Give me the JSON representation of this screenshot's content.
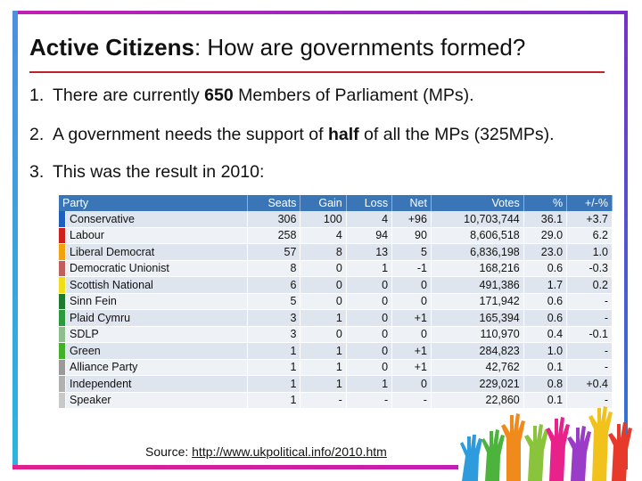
{
  "slide": {
    "title_bold": "Active Citizens",
    "title_rest": ": How are governments formed?",
    "points": [
      {
        "num": "1.",
        "before": "There are currently ",
        "bold": "650",
        "after": " Members of Parliament (MPs)."
      },
      {
        "num": "2.",
        "before": "A government needs the support of ",
        "bold": "half",
        "after": " of all the MPs (325MPs)."
      },
      {
        "num": "3.",
        "before": "This was the result in 2010:",
        "bold": "",
        "after": ""
      }
    ],
    "source_label": "Source: ",
    "source_link": "http://www.ukpolitical.info/2010.htm"
  },
  "table": {
    "headers": [
      "Party",
      "Seats",
      "Gain",
      "Loss",
      "Net",
      "Votes",
      "%",
      "+/-%"
    ],
    "rows": [
      {
        "color": "#1f5fbf",
        "party": "Conservative",
        "seats": "306",
        "gain": "100",
        "loss": "4",
        "net": "+96",
        "votes": "10,703,744",
        "pct": "36.1",
        "change": "+3.7"
      },
      {
        "color": "#d0201c",
        "party": "Labour",
        "seats": "258",
        "gain": "4",
        "loss": "94",
        "net": "90",
        "votes": "8,606,518",
        "pct": "29.0",
        "change": "6.2"
      },
      {
        "color": "#f2a20c",
        "party": "Liberal Democrat",
        "seats": "57",
        "gain": "8",
        "loss": "13",
        "net": "5",
        "votes": "6,836,198",
        "pct": "23.0",
        "change": "1.0"
      },
      {
        "color": "#c2605e",
        "party": "Democratic Unionist",
        "seats": "8",
        "gain": "0",
        "loss": "1",
        "net": "-1",
        "votes": "168,216",
        "pct": "0.6",
        "change": "-0.3"
      },
      {
        "color": "#f0de18",
        "party": "Scottish National",
        "seats": "6",
        "gain": "0",
        "loss": "0",
        "net": "0",
        "votes": "491,386",
        "pct": "1.7",
        "change": "0.2"
      },
      {
        "color": "#1f7a2e",
        "party": "Sinn Fein",
        "seats": "5",
        "gain": "0",
        "loss": "0",
        "net": "0",
        "votes": "171,942",
        "pct": "0.6",
        "change": "-"
      },
      {
        "color": "#2a9a3c",
        "party": "Plaid Cymru",
        "seats": "3",
        "gain": "1",
        "loss": "0",
        "net": "+1",
        "votes": "165,394",
        "pct": "0.6",
        "change": "-"
      },
      {
        "color": "#8fbf8f",
        "party": "SDLP",
        "seats": "3",
        "gain": "0",
        "loss": "0",
        "net": "0",
        "votes": "110,970",
        "pct": "0.4",
        "change": "-0.1"
      },
      {
        "color": "#43b02a",
        "party": "Green",
        "seats": "1",
        "gain": "1",
        "loss": "0",
        "net": "+1",
        "votes": "284,823",
        "pct": "1.0",
        "change": "-"
      },
      {
        "color": "#9a9a9a",
        "party": "Alliance Party",
        "seats": "1",
        "gain": "1",
        "loss": "0",
        "net": "+1",
        "votes": "42,762",
        "pct": "0.1",
        "change": "-"
      },
      {
        "color": "#b0b0b0",
        "party": "Independent",
        "seats": "1",
        "gain": "1",
        "loss": "1",
        "net": "0",
        "votes": "229,021",
        "pct": "0.8",
        "change": "+0.4"
      },
      {
        "color": "#c8c8c8",
        "party": "Speaker",
        "seats": "1",
        "gain": "-",
        "loss": "-",
        "net": "-",
        "votes": "22,860",
        "pct": "0.1",
        "change": "-"
      }
    ]
  },
  "colors": {
    "header_blue": "#3a75b8",
    "title_rule": "#c0202a",
    "frame_magenta": "#c21fb3"
  },
  "decoration": {
    "hands_icon": "raised-hands-illustration"
  }
}
